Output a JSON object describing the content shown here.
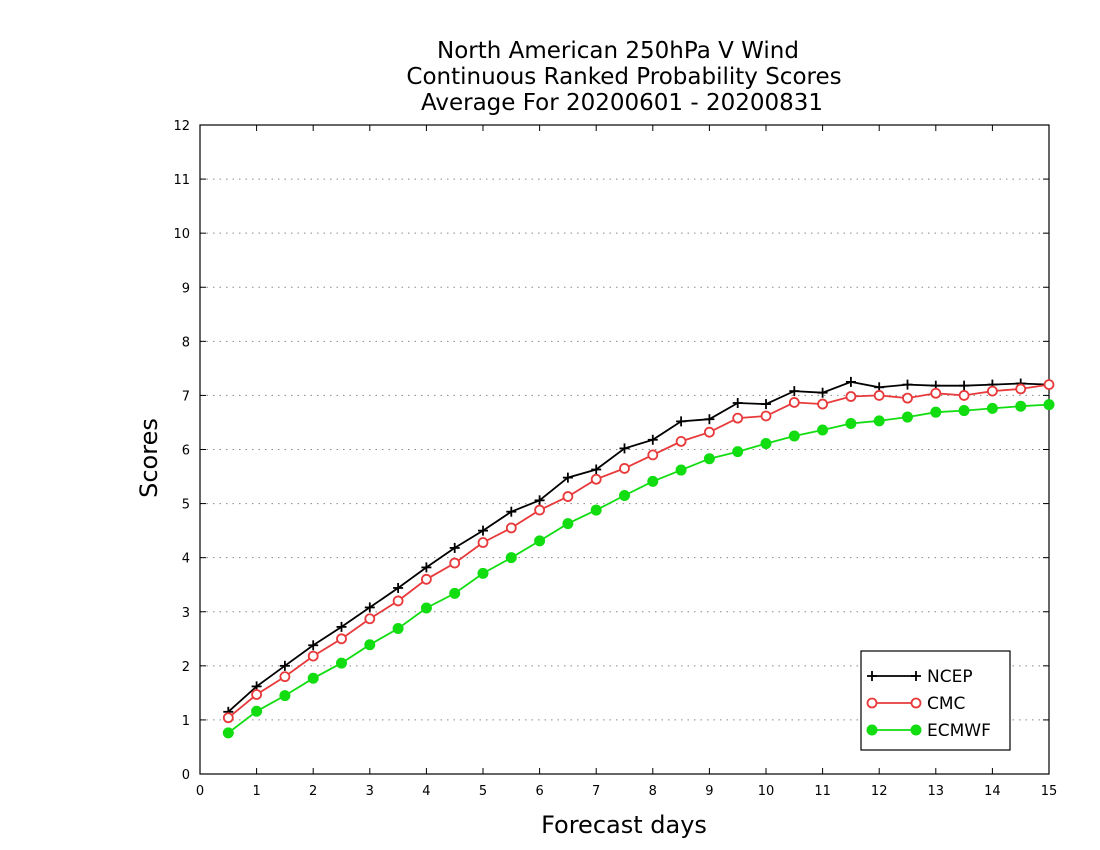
{
  "chart_data": {
    "type": "line",
    "title": [
      "North American 250hPa V Wind",
      "Continuous Ranked Probability Scores",
      "Average For 20200601 - 20200831"
    ],
    "xlabel": "Forecast days",
    "ylabel": "Scores",
    "xlim": [
      0,
      15
    ],
    "ylim": [
      0,
      12
    ],
    "xticks": [
      "0",
      "1",
      "2",
      "3",
      "4",
      "5",
      "6",
      "7",
      "8",
      "9",
      "10",
      "11",
      "12",
      "13",
      "14",
      "15"
    ],
    "yticks": [
      "0",
      "1",
      "2",
      "3",
      "4",
      "5",
      "6",
      "7",
      "8",
      "9",
      "10",
      "11",
      "12"
    ],
    "grid": "horizontal dotted",
    "legend_position": "bottom-right",
    "x": [
      0.5,
      1,
      1.5,
      2,
      2.5,
      3,
      3.5,
      4,
      4.5,
      5,
      5.5,
      6,
      6.5,
      7,
      7.5,
      8,
      8.5,
      9,
      9.5,
      10,
      10.5,
      11,
      11.5,
      12,
      12.5,
      13,
      13.5,
      14,
      14.5,
      15
    ],
    "series": [
      {
        "name": "NCEP",
        "color": "#000000",
        "marker": "plus",
        "values": [
          1.15,
          1.62,
          2.0,
          2.38,
          2.72,
          3.08,
          3.44,
          3.82,
          4.18,
          4.5,
          4.85,
          5.06,
          5.48,
          5.63,
          6.02,
          6.18,
          6.52,
          6.56,
          6.86,
          6.84,
          7.08,
          7.05,
          7.25,
          7.15,
          7.2,
          7.18,
          7.18,
          7.2,
          7.22,
          7.2
        ]
      },
      {
        "name": "CMC",
        "color": "#e8393b",
        "marker": "open-circle",
        "values": [
          1.04,
          1.47,
          1.8,
          2.18,
          2.5,
          2.87,
          3.2,
          3.6,
          3.9,
          4.28,
          4.55,
          4.88,
          5.13,
          5.45,
          5.65,
          5.9,
          6.15,
          6.32,
          6.58,
          6.62,
          6.87,
          6.84,
          6.98,
          7.0,
          6.95,
          7.04,
          7.0,
          7.08,
          7.12,
          7.2
        ]
      },
      {
        "name": "ECMWF",
        "color": "#11dd11",
        "marker": "filled-circle",
        "values": [
          0.76,
          1.16,
          1.45,
          1.77,
          2.05,
          2.39,
          2.69,
          3.07,
          3.34,
          3.71,
          4.0,
          4.31,
          4.63,
          4.88,
          5.15,
          5.41,
          5.62,
          5.83,
          5.96,
          6.11,
          6.25,
          6.36,
          6.48,
          6.53,
          6.6,
          6.69,
          6.72,
          6.76,
          6.8,
          6.83
        ]
      }
    ]
  }
}
